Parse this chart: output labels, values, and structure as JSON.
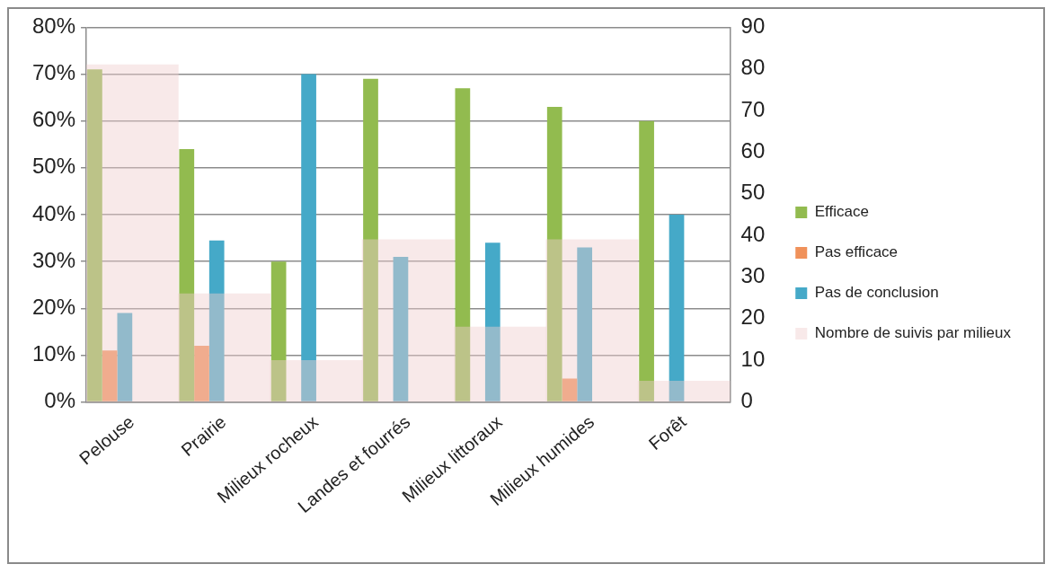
{
  "chart_data": {
    "type": "bar",
    "categories": [
      "Pelouse",
      "Prairie",
      "Milieux rocheux",
      "Landes et fourrés",
      "Milieux littoraux",
      "Milieux humides",
      "Forêt"
    ],
    "series": [
      {
        "name": "Efficace",
        "color": "#92bb4f",
        "values": [
          71,
          54,
          30,
          69,
          67,
          63,
          60
        ]
      },
      {
        "name": "Pas efficace",
        "color": "#f0915a",
        "values": [
          11,
          12,
          0,
          0,
          0,
          5,
          0
        ]
      },
      {
        "name": "Pas de conclusion",
        "color": "#45a9c8",
        "values": [
          19,
          34.5,
          70,
          31,
          34,
          33,
          40
        ]
      },
      {
        "name": "Nombre de suivis par milieux",
        "color": "#f0cfcf",
        "axis": "y2",
        "values": [
          81,
          26,
          10,
          39,
          18,
          39,
          5
        ]
      }
    ],
    "ylim": [
      0,
      80
    ],
    "yticks": [
      {
        "value": 0,
        "label": "0%"
      },
      {
        "value": 10,
        "label": "10%"
      },
      {
        "value": 20,
        "label": "20%"
      },
      {
        "value": 30,
        "label": "30%"
      },
      {
        "value": 40,
        "label": "40%"
      },
      {
        "value": 50,
        "label": "50%"
      },
      {
        "value": 60,
        "label": "60%"
      },
      {
        "value": 70,
        "label": "70%"
      },
      {
        "value": 80,
        "label": "80%"
      }
    ],
    "y2lim": [
      0,
      90
    ],
    "y2ticks": [
      0,
      10,
      20,
      30,
      40,
      50,
      60,
      70,
      80,
      90
    ],
    "grid": "y",
    "legend": "right"
  }
}
